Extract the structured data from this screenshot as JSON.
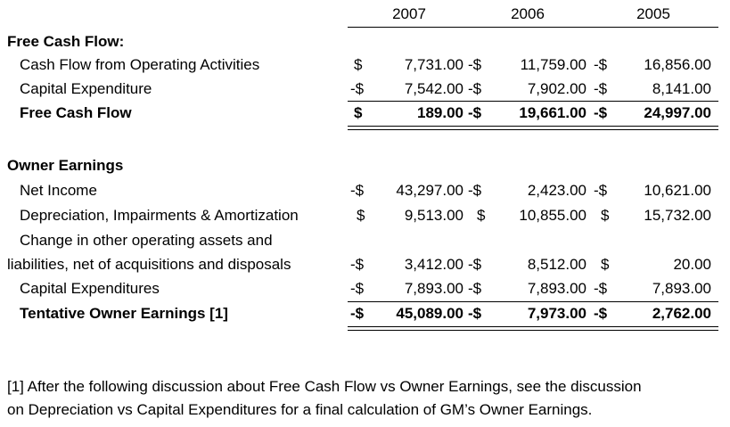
{
  "years": [
    "2007",
    "2006",
    "2005"
  ],
  "fcf": {
    "heading": "Free Cash Flow:",
    "rows": [
      {
        "label": "Cash Flow from Operating Activities",
        "bold": false,
        "cells": [
          [
            "$",
            "7,731.00"
          ],
          [
            "-$",
            "11,759.00"
          ],
          [
            "-$",
            "16,856.00"
          ]
        ]
      },
      {
        "label": "Capital Expenditure",
        "bold": false,
        "cells": [
          [
            "-$",
            "7,542.00"
          ],
          [
            "-$",
            "7,902.00"
          ],
          [
            "-$",
            "8,141.00"
          ]
        ]
      },
      {
        "label": "Free Cash Flow",
        "bold": true,
        "cells": [
          [
            "$",
            "189.00"
          ],
          [
            "-$",
            "19,661.00"
          ],
          [
            "-$",
            "24,997.00"
          ]
        ]
      }
    ]
  },
  "oe": {
    "heading": "Owner Earnings",
    "rows": [
      {
        "label": "Net Income",
        "bold": false,
        "cells": [
          [
            "-$",
            "43,297.00"
          ],
          [
            "-$",
            "2,423.00"
          ],
          [
            "-$",
            "10,621.00"
          ]
        ]
      },
      {
        "label": "Depreciation, Impairments & Amortization",
        "bold": false,
        "cells": [
          [
            "$",
            "9,513.00"
          ],
          [
            "$",
            "10,855.00"
          ],
          [
            "$",
            "15,732.00"
          ]
        ]
      },
      {
        "label_line1": "Change in other operating assets and",
        "label": "liabilities, net of acquisitions and disposals",
        "bold": false,
        "cells": [
          [
            "-$",
            "3,412.00"
          ],
          [
            "-$",
            "8,512.00"
          ],
          [
            "$",
            "20.00"
          ]
        ]
      },
      {
        "label": "Capital Expenditures",
        "bold": false,
        "cells": [
          [
            "-$",
            "7,893.00"
          ],
          [
            "-$",
            "7,893.00"
          ],
          [
            "-$",
            "7,893.00"
          ]
        ]
      },
      {
        "label": "Tentative Owner Earnings [1]",
        "bold": true,
        "cells": [
          [
            "-$",
            "45,089.00"
          ],
          [
            "-$",
            "7,973.00"
          ],
          [
            "-$",
            "2,762.00"
          ]
        ]
      }
    ]
  },
  "footnote": {
    "line1": "[1] After the following discussion about Free Cash Flow vs Owner Earnings, see the discussion",
    "line2": "on Depreciation vs Capital Expenditures for a final calculation of GM’s Owner Earnings."
  }
}
